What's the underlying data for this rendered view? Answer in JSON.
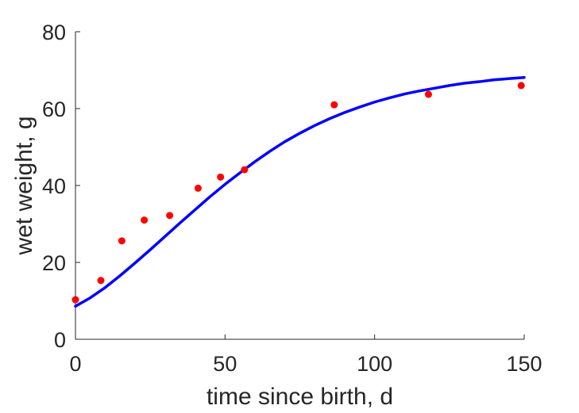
{
  "chart_data": {
    "type": "scatter",
    "title": "",
    "xlabel": "time since birth, d",
    "ylabel": "wet weight, g",
    "xlim": [
      0,
      150
    ],
    "ylim": [
      0,
      80
    ],
    "xticks": [
      0,
      50,
      100,
      150
    ],
    "yticks": [
      0,
      20,
      40,
      60,
      80
    ],
    "grid": false,
    "legend": "none",
    "series": [
      {
        "kind": "line",
        "color": "#0000ff",
        "x": [
          0,
          5,
          10,
          15,
          20,
          25,
          30,
          35,
          40,
          45,
          50,
          55,
          60,
          65,
          70,
          75,
          80,
          85,
          90,
          95,
          100,
          105,
          110,
          115,
          120,
          125,
          130,
          135,
          140,
          145,
          150
        ],
        "y": [
          8.6,
          10.8,
          13.5,
          16.6,
          19.9,
          23.3,
          26.8,
          30.3,
          33.7,
          37.1,
          40.3,
          43.3,
          46.2,
          48.9,
          51.4,
          53.6,
          55.6,
          57.4,
          59.0,
          60.4,
          61.7,
          62.8,
          63.8,
          64.6,
          65.3,
          66.0,
          66.6,
          67.0,
          67.5,
          67.8,
          68.1
        ]
      },
      {
        "kind": "scatter",
        "color": "#ff0000",
        "x": [
          0,
          8.5,
          15.5,
          23,
          31.5,
          41,
          48.5,
          56.5,
          86.5,
          118,
          149
        ],
        "y": [
          10.3,
          15.3,
          25.6,
          31.0,
          32.2,
          39.3,
          42.2,
          44.1,
          61.0,
          63.7,
          66.0
        ]
      }
    ]
  }
}
